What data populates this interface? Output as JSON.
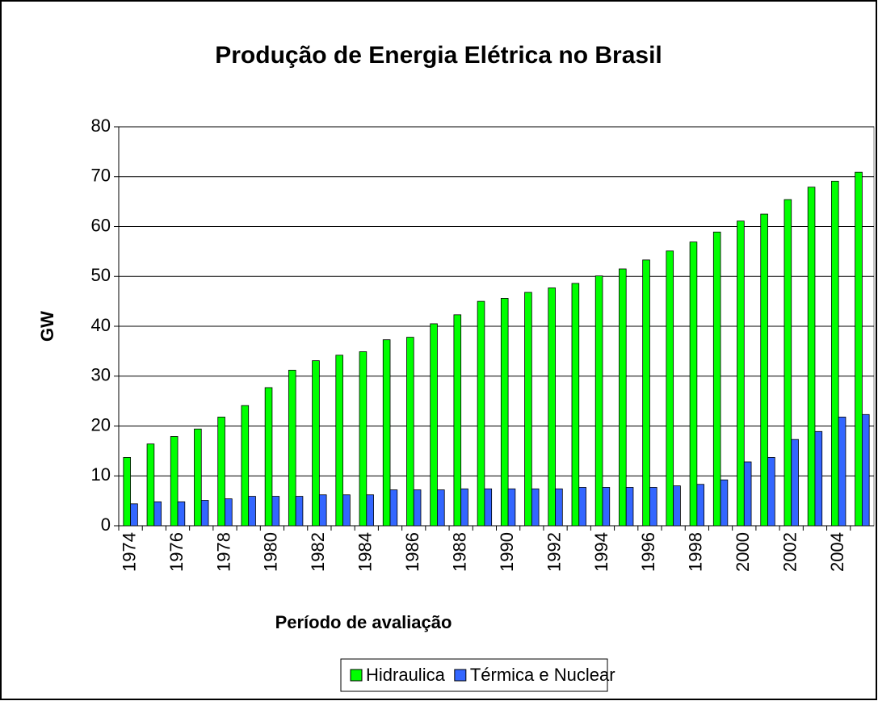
{
  "chart_data": {
    "type": "bar",
    "title": "Produção de Energia Elétrica no Brasil",
    "x_label": "Período de avaliação",
    "y_label": "GW",
    "categories": [
      "1974",
      null,
      "1976",
      null,
      "1978",
      null,
      "1980",
      null,
      "1982",
      null,
      "1984",
      null,
      "1986",
      null,
      "1988",
      null,
      "1990",
      null,
      "1992",
      null,
      "1994",
      null,
      "1996",
      null,
      "1998",
      null,
      "2000",
      null,
      "2002",
      null,
      "2004",
      null
    ],
    "series": [
      {
        "name": "Hidraulica",
        "color": "#00ff00",
        "values": [
          13.7,
          16.4,
          17.9,
          19.4,
          21.8,
          24.1,
          27.7,
          31.2,
          33.1,
          34.2,
          34.9,
          37.3,
          37.8,
          40.5,
          42.3,
          45.0,
          45.6,
          46.8,
          47.7,
          48.6,
          50.1,
          51.5,
          53.3,
          55.1,
          56.9,
          58.9,
          61.1,
          62.5,
          65.4,
          67.9,
          69.1,
          70.9
        ]
      },
      {
        "name": "Térmica e Nuclear",
        "color": "#3366ff",
        "values": [
          4.4,
          4.8,
          4.8,
          5.1,
          5.4,
          5.9,
          5.9,
          5.9,
          6.2,
          6.2,
          6.2,
          7.2,
          7.2,
          7.2,
          7.4,
          7.4,
          7.4,
          7.4,
          7.4,
          7.7,
          7.7,
          7.7,
          7.7,
          8.0,
          8.3,
          9.2,
          12.8,
          13.7,
          17.3,
          18.9,
          21.8,
          22.3
        ]
      }
    ],
    "ylim": [
      0,
      80
    ],
    "yticks": [
      0,
      10,
      20,
      30,
      40,
      50,
      60,
      70,
      80
    ],
    "grid": true,
    "legend": "bottom"
  }
}
